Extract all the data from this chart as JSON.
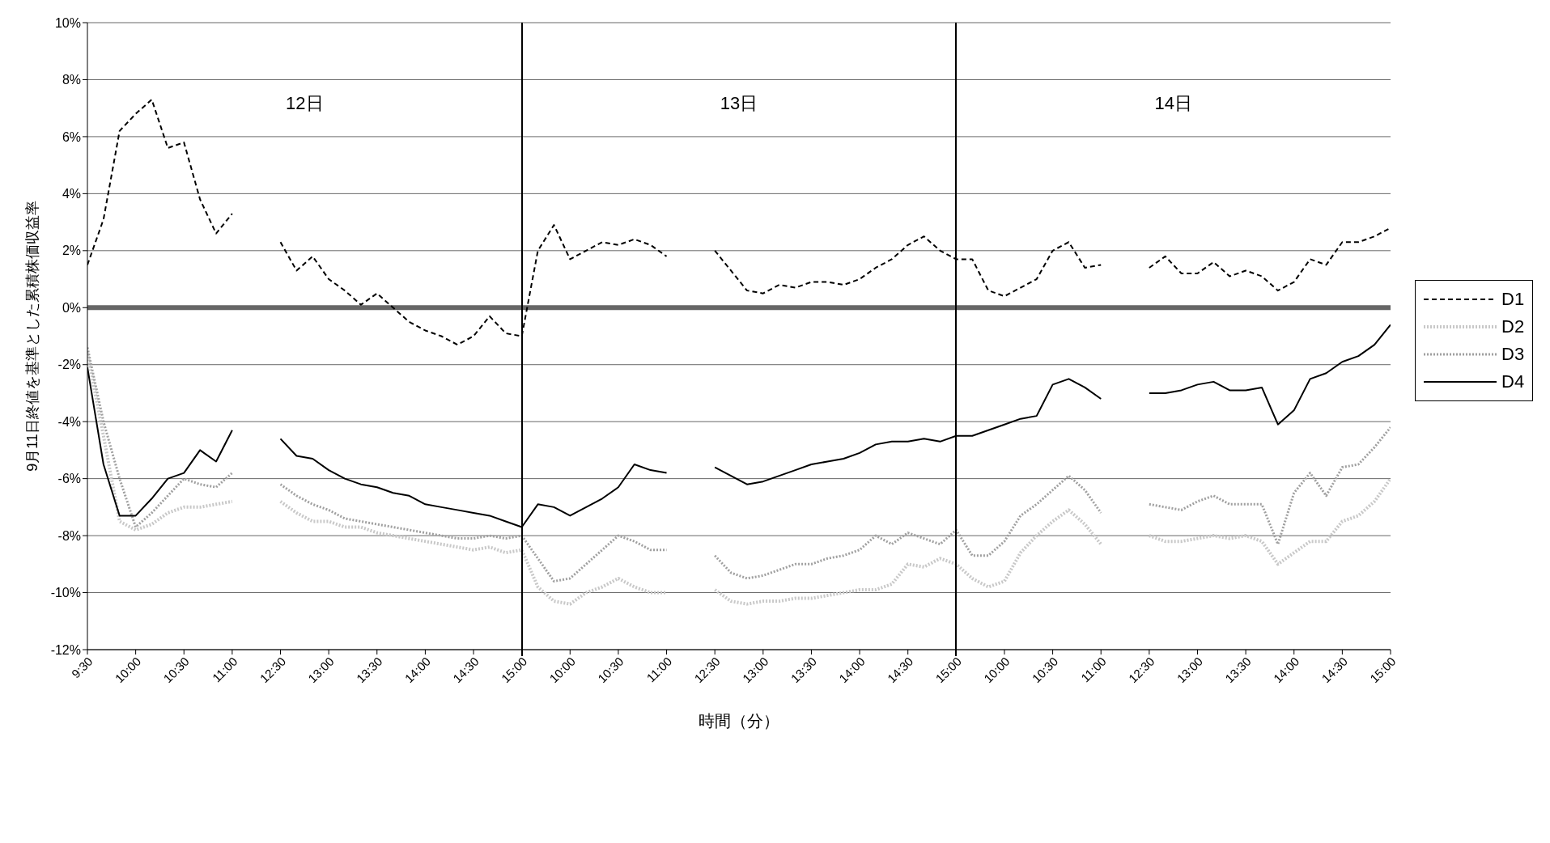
{
  "chart_data": {
    "type": "line",
    "xlabel": "時間（分）",
    "ylabel": "9月11日終値を基準とした累積株価収益率",
    "annotations": [
      "12日",
      "13日",
      "14日"
    ],
    "categories": [
      "9:30",
      null,
      null,
      "10:00",
      null,
      null,
      "10:30",
      null,
      null,
      "11:00",
      null,
      null,
      "12:30",
      null,
      null,
      "13:00",
      null,
      null,
      "13:30",
      null,
      null,
      "14:00",
      null,
      null,
      "14:30",
      null,
      null,
      "15:00",
      null,
      null,
      "10:00",
      null,
      null,
      "10:30",
      null,
      null,
      "11:00",
      null,
      null,
      "12:30",
      null,
      null,
      "13:00",
      null,
      null,
      "13:30",
      null,
      null,
      "14:00",
      null,
      null,
      "14:30",
      null,
      null,
      "15:00",
      null,
      null,
      "10:00",
      null,
      null,
      "10:30",
      null,
      null,
      "11:00",
      null,
      null,
      "12:30",
      null,
      null,
      "13:00",
      null,
      null,
      "13:30",
      null,
      null,
      "14:00",
      null,
      null,
      "14:30",
      null,
      null,
      "15:00"
    ],
    "ylim": [
      -12,
      10
    ],
    "yticks": [
      {
        "value": -12,
        "label": "-12%"
      },
      {
        "value": -10,
        "label": "-10%"
      },
      {
        "value": -8,
        "label": "-8%"
      },
      {
        "value": -6,
        "label": "-6%"
      },
      {
        "value": -4,
        "label": "-4%"
      },
      {
        "value": -2,
        "label": "-2%"
      },
      {
        "value": 0,
        "label": "0%"
      },
      {
        "value": 2,
        "label": "2%"
      },
      {
        "value": 4,
        "label": "4%"
      },
      {
        "value": 6,
        "label": "6%"
      },
      {
        "value": 8,
        "label": "8%"
      },
      {
        "value": 10,
        "label": "10%"
      }
    ],
    "grid": "y",
    "legend": "right",
    "ref_lines": [
      {
        "axis": "y",
        "value": 0,
        "color": "#666666"
      }
    ],
    "series": [
      {
        "name": "D1",
        "color": "#000000",
        "line_style": "dashed",
        "values": [
          1.5,
          3.1,
          6.2,
          6.8,
          7.3,
          5.6,
          5.8,
          3.8,
          2.6,
          3.3,
          null,
          null,
          2.3,
          1.3,
          1.8,
          1.0,
          0.6,
          0.1,
          0.5,
          0.0,
          -0.5,
          -0.8,
          -1.0,
          -1.3,
          -1.0,
          -0.3,
          -0.9,
          -1.0,
          2.0,
          2.9,
          1.7,
          2.0,
          2.3,
          2.2,
          2.4,
          2.2,
          1.8,
          null,
          null,
          2.0,
          1.3,
          0.6,
          0.5,
          0.8,
          0.7,
          0.9,
          0.9,
          0.8,
          1.0,
          1.4,
          1.7,
          2.2,
          2.5,
          2.0,
          1.7,
          1.7,
          0.6,
          0.4,
          0.7,
          1.0,
          2.0,
          2.3,
          1.4,
          1.5,
          null,
          null,
          1.4,
          1.8,
          1.2,
          1.2,
          1.6,
          1.1,
          1.3,
          1.1,
          0.6,
          0.9,
          1.7,
          1.5,
          2.3,
          2.3,
          2.5,
          2.8
        ]
      },
      {
        "name": "D2",
        "color": "#c8c8c8",
        "line_style": "dotted",
        "values": [
          -1.6,
          -4.5,
          -7.5,
          -7.8,
          -7.6,
          -7.2,
          -7.0,
          -7.0,
          -6.9,
          -6.8,
          null,
          null,
          -6.8,
          -7.2,
          -7.5,
          -7.5,
          -7.7,
          -7.7,
          -7.9,
          -8.0,
          -8.1,
          -8.2,
          -8.3,
          -8.4,
          -8.5,
          -8.4,
          -8.6,
          -8.5,
          -9.8,
          -10.3,
          -10.4,
          -10.0,
          -9.8,
          -9.5,
          -9.8,
          -10.0,
          -10.0,
          null,
          null,
          -9.9,
          -10.3,
          -10.4,
          -10.3,
          -10.3,
          -10.2,
          -10.2,
          -10.1,
          -10.0,
          -9.9,
          -9.9,
          -9.7,
          -9.0,
          -9.1,
          -8.8,
          -9.0,
          -9.5,
          -9.8,
          -9.6,
          -8.6,
          -8.0,
          -7.5,
          -7.1,
          -7.6,
          -8.3,
          null,
          null,
          -8.0,
          -8.2,
          -8.2,
          -8.1,
          -8.0,
          -8.1,
          -8.0,
          -8.2,
          -9.0,
          -8.6,
          -8.2,
          -8.2,
          -7.5,
          -7.3,
          -6.8,
          -6.0
        ]
      },
      {
        "name": "D3",
        "color": "#a0a0a0",
        "line_style": "dotted",
        "values": [
          -1.4,
          -4.0,
          -6.0,
          -7.7,
          -7.2,
          -6.6,
          -6.0,
          -6.2,
          -6.3,
          -5.8,
          null,
          null,
          -6.2,
          -6.6,
          -6.9,
          -7.1,
          -7.4,
          -7.5,
          -7.6,
          -7.7,
          -7.8,
          -7.9,
          -8.0,
          -8.1,
          -8.1,
          -8.0,
          -8.1,
          -8.0,
          -8.8,
          -9.6,
          -9.5,
          -9.0,
          -8.5,
          -8.0,
          -8.2,
          -8.5,
          -8.5,
          null,
          null,
          -8.7,
          -9.3,
          -9.5,
          -9.4,
          -9.2,
          -9.0,
          -9.0,
          -8.8,
          -8.7,
          -8.5,
          -8.0,
          -8.3,
          -7.9,
          -8.1,
          -8.3,
          -7.8,
          -8.7,
          -8.7,
          -8.2,
          -7.3,
          -6.9,
          -6.4,
          -5.9,
          -6.4,
          -7.2,
          null,
          null,
          -6.9,
          -7.0,
          -7.1,
          -6.8,
          -6.6,
          -6.9,
          -6.9,
          -6.9,
          -8.3,
          -6.5,
          -5.8,
          -6.6,
          -5.6,
          -5.5,
          -4.9,
          -4.2
        ]
      },
      {
        "name": "D4",
        "color": "#000000",
        "line_style": "solid",
        "values": [
          -2.1,
          -5.5,
          -7.3,
          -7.3,
          -6.7,
          -6.0,
          -5.8,
          -5.0,
          -5.4,
          -4.3,
          null,
          null,
          -4.6,
          -5.2,
          -5.3,
          -5.7,
          -6.0,
          -6.2,
          -6.3,
          -6.5,
          -6.6,
          -6.9,
          -7.0,
          -7.1,
          -7.2,
          -7.3,
          -7.5,
          -7.7,
          -6.9,
          -7.0,
          -7.3,
          -7.0,
          -6.7,
          -6.3,
          -5.5,
          -5.7,
          -5.8,
          null,
          null,
          -5.6,
          -5.9,
          -6.2,
          -6.1,
          -5.9,
          -5.7,
          -5.5,
          -5.4,
          -5.3,
          -5.1,
          -4.8,
          -4.7,
          -4.7,
          -4.6,
          -4.7,
          -4.5,
          -4.5,
          -4.3,
          -4.1,
          -3.9,
          -3.8,
          -2.7,
          -2.5,
          -2.8,
          -3.2,
          null,
          null,
          -3.0,
          -3.0,
          -2.9,
          -2.7,
          -2.6,
          -2.9,
          -2.9,
          -2.8,
          -4.1,
          -3.6,
          -2.5,
          -2.3,
          -1.9,
          -1.7,
          -1.3,
          -0.6
        ]
      }
    ]
  }
}
